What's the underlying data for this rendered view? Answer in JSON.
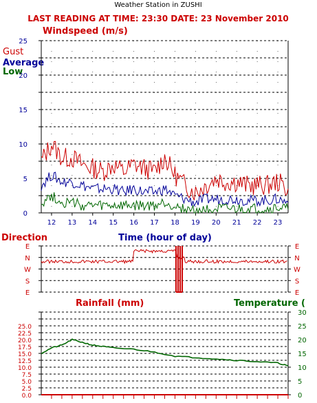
{
  "header": {
    "station": "Weather Station in ZUSHI",
    "last_reading": "LAST READING AT TIME: 23:30   DATE: 23 November 2010"
  },
  "colors": {
    "red": "#cc0000",
    "blue": "#000099",
    "green": "#006600",
    "grid": "#000000"
  },
  "chart_data": [
    {
      "type": "line",
      "title": "Windspeed (m/s)",
      "xlabel": "Time (hour of day)",
      "x_ticks": [
        "12",
        "13",
        "14",
        "15",
        "16",
        "17",
        "18",
        "19",
        "20",
        "21",
        "22",
        "23"
      ],
      "xlim": [
        11.5,
        23.5
      ],
      "ylim": [
        0,
        25
      ],
      "y_ticks": [
        "0",
        "5",
        "10",
        "15",
        "20",
        "25"
      ],
      "grid": true,
      "legend": [
        "Gust",
        "Average",
        "Low"
      ],
      "series": [
        {
          "name": "Gust",
          "color": "#cc0000",
          "x": [
            11.5,
            12,
            12.5,
            13,
            13.5,
            14,
            14.5,
            15,
            15.5,
            16,
            16.5,
            17,
            17.5,
            18,
            18.5,
            19,
            19.5,
            20,
            20.5,
            21,
            21.5,
            22,
            22.5,
            23,
            23.5
          ],
          "y": [
            7.5,
            10,
            8,
            8,
            7,
            6.5,
            6,
            7,
            6,
            7,
            6.5,
            6,
            8,
            5.5,
            4,
            3,
            4,
            5,
            4.5,
            4.5,
            4,
            4,
            4,
            4.5,
            3.5
          ]
        },
        {
          "name": "Average",
          "color": "#000099",
          "x": [
            11.5,
            12,
            12.5,
            13,
            13.5,
            14,
            14.5,
            15,
            15.5,
            16,
            16.5,
            17,
            17.5,
            18,
            18.5,
            19,
            19.5,
            20,
            20.5,
            21,
            21.5,
            22,
            22.5,
            23,
            23.5
          ],
          "y": [
            4,
            5.5,
            4.5,
            4.5,
            4,
            3.5,
            3.5,
            3.5,
            3,
            3.5,
            3,
            3,
            3.5,
            2.5,
            2,
            1.5,
            2,
            2,
            2,
            2,
            1.8,
            1.8,
            1.8,
            2,
            1.5
          ]
        },
        {
          "name": "Low",
          "color": "#006600",
          "x": [
            11.5,
            12,
            12.5,
            13,
            13.5,
            14,
            14.5,
            15,
            15.5,
            16,
            16.5,
            17,
            17.5,
            18,
            18.5,
            19,
            19.5,
            20,
            20.5,
            21,
            21.5,
            22,
            22.5,
            23,
            23.5
          ],
          "y": [
            1.5,
            2.5,
            1.5,
            1.5,
            1,
            1,
            1,
            1,
            1,
            1,
            1,
            1,
            1.5,
            1,
            0.5,
            0.3,
            0.5,
            0.5,
            0.5,
            0.5,
            0.5,
            0.5,
            0.5,
            0.7,
            0.5
          ]
        }
      ]
    },
    {
      "type": "line",
      "title": "Direction",
      "y_labels": [
        "E",
        "N",
        "W",
        "S",
        "E"
      ],
      "grid": true,
      "series": [
        {
          "name": "Direction",
          "color": "#cc0000",
          "x": [
            11.5,
            12,
            13,
            14,
            15,
            16,
            16.5,
            17,
            17.5,
            18,
            18.1,
            18.3,
            18.5,
            19,
            20,
            21,
            22,
            23,
            23.5
          ],
          "y": [
            "N",
            "N",
            "N",
            "N",
            "N",
            "NE",
            "NE",
            "NE",
            "NE",
            "NE",
            "E",
            "E",
            "NE",
            "N",
            "N",
            "N",
            "N",
            "N",
            "N"
          ]
        }
      ]
    },
    {
      "type": "line",
      "title": "Rainfall (mm)",
      "y2label": "Temperature (",
      "ylim": [
        0,
        30
      ],
      "y_ticks": [
        "0.0",
        "2.5",
        "5.0",
        "7.5",
        "10.0",
        "12.5",
        "15.0",
        "17.5",
        "20.0",
        "22.5",
        "25.0"
      ],
      "y2lim": [
        0,
        30
      ],
      "y2_ticks": [
        "0",
        "5",
        "10",
        "15",
        "20",
        "25",
        "30"
      ],
      "grid": true,
      "series": [
        {
          "name": "Temperature",
          "color": "#006600",
          "axis": "right",
          "x": [
            11.5,
            12,
            12.5,
            13,
            13.5,
            14,
            14.5,
            15,
            16,
            17,
            18,
            19,
            20,
            21,
            22,
            23,
            23.5
          ],
          "y": [
            15,
            17,
            18,
            20,
            19,
            18,
            17.5,
            17,
            16.5,
            15.5,
            14,
            13.5,
            13,
            12.5,
            12,
            11.5,
            10.5
          ]
        },
        {
          "name": "Rainfall",
          "color": "#cc0000",
          "axis": "left",
          "x": [
            11.5,
            23.5
          ],
          "y": [
            0,
            0
          ]
        }
      ]
    }
  ]
}
